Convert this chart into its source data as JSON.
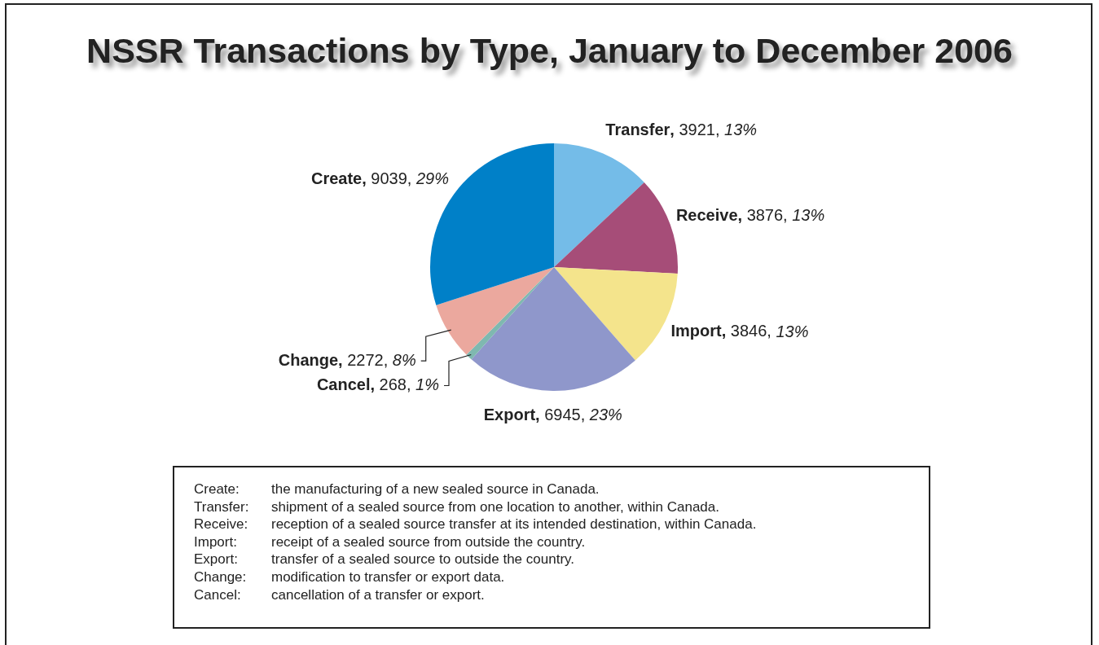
{
  "chart_data": {
    "type": "pie",
    "title": "NSSR Transactions by Type, January to December 2006",
    "categories": [
      "Transfer",
      "Receive",
      "Import",
      "Export",
      "Cancel",
      "Change",
      "Create"
    ],
    "values": [
      3921,
      3876,
      3846,
      6945,
      268,
      2272,
      9039
    ],
    "colors": [
      "#74bce8",
      "#a64d78",
      "#f4e48c",
      "#8f97cb",
      "#7fb8b0",
      "#eba89e",
      "#0080c8"
    ],
    "value_labels": [
      ", 3921, 13%",
      ", 3876, 13%",
      ", 3846, 13%",
      ", 6945, 23%",
      ", 268, 1%",
      ", 2272, 8%",
      ", 9039, 29%"
    ],
    "legend": false,
    "annotations": [
      "Create: the manufacturing of a new sealed source in Canada.",
      "Transfer: shipment of a sealed source from one location to another, within Canada.",
      "Receive: reception of a sealed source transfer at its intended destination, within Canada.",
      "Import: receipt of a sealed source from outside the country.",
      "Export: transfer of a sealed source to outside the country.",
      "Change: modification to transfer or export data.",
      "Cancel: cancellation of a transfer or export."
    ]
  }
}
